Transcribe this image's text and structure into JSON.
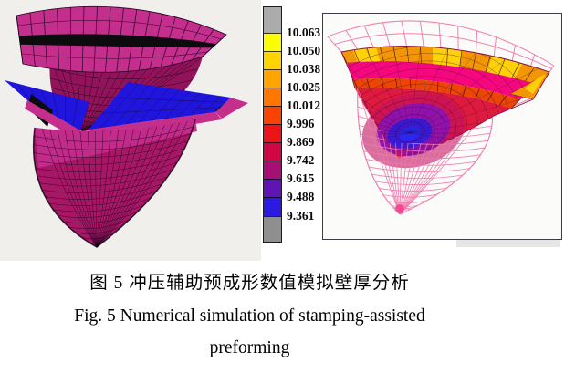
{
  "figure_caption": {
    "line_zh": "图 5  冲压辅助预成形数值模拟壁厚分析",
    "line_en1": "Fig. 5 Numerical simulation of stamping-assisted",
    "line_en2": "preforming"
  },
  "legend": {
    "boundary_values": [
      "10.063",
      "10.050",
      "10.038",
      "10.025",
      "10.012",
      "9.996",
      "9.869",
      "9.742",
      "9.615",
      "9.488",
      "9.361"
    ],
    "segment_colors": [
      "#ababab",
      "#fcfc02",
      "#ffd300",
      "#ffa400",
      "#ff7600",
      "#fa4300",
      "#ec1319",
      "#d10745",
      "#a60f74",
      "#5f14b4",
      "#2b1ae2",
      "#8f8f8f"
    ]
  },
  "colors": {
    "left_bg": "#f0efec",
    "fan_magenta": "#c42e8c",
    "dome_dark": "#92135a",
    "cup_dark": "#a81766",
    "blank_blue": "#2015dd",
    "black_band": "#0c0c0e",
    "mesh_line": "#16001a",
    "wire_pink": "#ef77ab",
    "wire_pink_light": "#f6a8c9",
    "hot_pink": "#f5077e",
    "orange": "#f29507",
    "yellow": "#ffd90a",
    "orange_red": "#ec4504",
    "red": "#de1a3e",
    "crimson": "#c11060",
    "purple": "#8d12ae",
    "blue_deep": "#3a1ad4",
    "blue_core": "#2a28f0",
    "tip_pink": "#f2418f"
  }
}
